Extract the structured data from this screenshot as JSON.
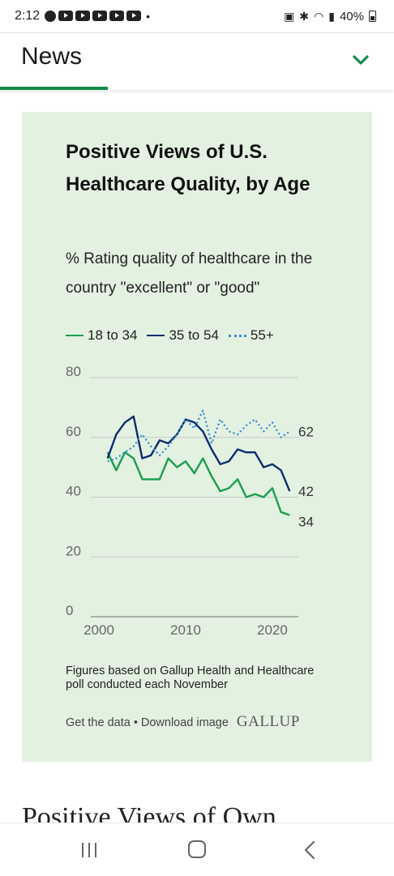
{
  "status_bar": {
    "time": "2:12",
    "separator": "•",
    "icons": [
      "facebook-icon",
      "youtube-icon",
      "youtube-icon",
      "youtube-icon",
      "youtube-icon",
      "youtube-icon",
      "nfc-icon",
      "bluetooth-icon",
      "wifi-icon",
      "signal-icon",
      "battery-icon"
    ],
    "battery": "40%"
  },
  "header": {
    "title": "News",
    "accent_color": "#138a47"
  },
  "card": {
    "background": "#e3f1e1",
    "footnote": "Figures based on Gallup Health and Healthcare poll conducted each November",
    "get_data": "Get the data",
    "bullet": "•",
    "download": "Download image",
    "logo": "GALLUP"
  },
  "chart_data": {
    "type": "line",
    "title": "Positive Views of U.S. Healthcare Quality, by Age",
    "subtitle": "% Rating quality of healthcare in the country \"excellent\" or \"good\"",
    "xlabel": "",
    "ylabel": "",
    "xlim": [
      2000,
      2023
    ],
    "ylim": [
      0,
      80
    ],
    "x_ticks": [
      2000,
      2010,
      2020
    ],
    "y_ticks": [
      0,
      20,
      40,
      60,
      80
    ],
    "grid": "horizontal",
    "legend": "top",
    "series": [
      {
        "name": "18 to 34",
        "color": "#1a9e4e",
        "style": "solid",
        "end_label": "34",
        "x": [
          2001,
          2002,
          2003,
          2004,
          2005,
          2006,
          2007,
          2008,
          2009,
          2010,
          2011,
          2012,
          2013,
          2014,
          2015,
          2016,
          2017,
          2018,
          2019,
          2020,
          2021,
          2022
        ],
        "y": [
          55,
          49,
          55,
          53,
          46,
          46,
          46,
          53,
          50,
          52,
          48,
          53,
          47,
          42,
          43,
          46,
          40,
          41,
          40,
          43,
          35,
          34
        ]
      },
      {
        "name": "35 to 54",
        "color": "#0b2d6b",
        "style": "solid",
        "end_label": "42",
        "x": [
          2001,
          2002,
          2003,
          2004,
          2005,
          2006,
          2007,
          2008,
          2009,
          2010,
          2011,
          2012,
          2013,
          2014,
          2015,
          2016,
          2017,
          2018,
          2019,
          2020,
          2021,
          2022
        ],
        "y": [
          53,
          61,
          65,
          67,
          53,
          54,
          59,
          58,
          61,
          66,
          65,
          62,
          56,
          51,
          52,
          56,
          55,
          55,
          50,
          51,
          49,
          42
        ]
      },
      {
        "name": "55+",
        "color": "#3a8fd0",
        "style": "dotted",
        "end_label": "62",
        "x": [
          2001,
          2002,
          2003,
          2004,
          2005,
          2006,
          2007,
          2008,
          2009,
          2010,
          2011,
          2012,
          2013,
          2014,
          2015,
          2016,
          2017,
          2018,
          2019,
          2020,
          2021,
          2022
        ],
        "y": [
          52,
          53,
          55,
          57,
          61,
          57,
          54,
          57,
          61,
          66,
          63,
          69,
          58,
          66,
          62,
          61,
          64,
          66,
          62,
          65,
          60,
          62
        ]
      }
    ]
  },
  "next_section": {
    "title": "Positive Views of Own"
  },
  "nav_bar": {
    "icons": [
      "recent-apps-icon",
      "home-icon",
      "back-icon"
    ]
  }
}
